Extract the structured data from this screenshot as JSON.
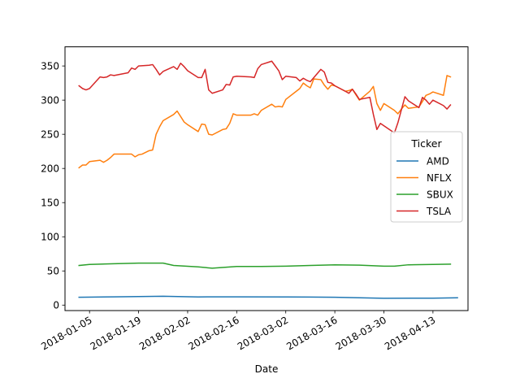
{
  "chart_data": {
    "type": "line",
    "xlabel": "Date",
    "ylabel": "",
    "title": "",
    "x_axis_type": "date",
    "xlim": [
      "2017-12-29",
      "2018-04-23"
    ],
    "ylim": [
      -8,
      378
    ],
    "x_ticks": [
      "2018-01-05",
      "2018-01-19",
      "2018-02-02",
      "2018-02-16",
      "2018-03-02",
      "2018-03-16",
      "2018-03-30",
      "2018-04-13"
    ],
    "y_ticks": [
      0,
      50,
      100,
      150,
      200,
      250,
      300,
      350
    ],
    "grid": false,
    "legend": {
      "title": "Ticker",
      "placement": "center-right",
      "entries": [
        "AMD",
        "NFLX",
        "SBUX",
        "TSLA"
      ]
    },
    "series": [
      {
        "name": "AMD",
        "color": "#1f77b4",
        "points": [
          [
            "2018-01-02",
            11.5
          ],
          [
            "2018-01-12",
            12.1
          ],
          [
            "2018-01-26",
            13.0
          ],
          [
            "2018-02-05",
            12.0
          ],
          [
            "2018-02-16",
            12.1
          ],
          [
            "2018-03-02",
            12.0
          ],
          [
            "2018-03-16",
            11.5
          ],
          [
            "2018-03-30",
            10.0
          ],
          [
            "2018-04-13",
            10.2
          ],
          [
            "2018-04-20",
            10.8
          ]
        ]
      },
      {
        "name": "NFLX",
        "color": "#ff7f0e",
        "points": [
          [
            "2018-01-02",
            201
          ],
          [
            "2018-01-03",
            205
          ],
          [
            "2018-01-04",
            205
          ],
          [
            "2018-01-05",
            210
          ],
          [
            "2018-01-08",
            212
          ],
          [
            "2018-01-09",
            209
          ],
          [
            "2018-01-10",
            212
          ],
          [
            "2018-01-11",
            216
          ],
          [
            "2018-01-12",
            221
          ],
          [
            "2018-01-16",
            221
          ],
          [
            "2018-01-17",
            221
          ],
          [
            "2018-01-18",
            217
          ],
          [
            "2018-01-19",
            220
          ],
          [
            "2018-01-20",
            221
          ],
          [
            "2018-01-22",
            226
          ],
          [
            "2018-01-23",
            227
          ],
          [
            "2018-01-24",
            250
          ],
          [
            "2018-01-25",
            261
          ],
          [
            "2018-01-26",
            270
          ],
          [
            "2018-01-29",
            279
          ],
          [
            "2018-01-30",
            284
          ],
          [
            "2018-01-31",
            276
          ],
          [
            "2018-02-01",
            268
          ],
          [
            "2018-02-02",
            264
          ],
          [
            "2018-02-05",
            254
          ],
          [
            "2018-02-06",
            265
          ],
          [
            "2018-02-07",
            264
          ],
          [
            "2018-02-08",
            250
          ],
          [
            "2018-02-09",
            249
          ],
          [
            "2018-02-12",
            257
          ],
          [
            "2018-02-13",
            258
          ],
          [
            "2018-02-14",
            266
          ],
          [
            "2018-02-15",
            280
          ],
          [
            "2018-02-16",
            278
          ],
          [
            "2018-02-20",
            278
          ],
          [
            "2018-02-21",
            280
          ],
          [
            "2018-02-22",
            278
          ],
          [
            "2018-02-23",
            285
          ],
          [
            "2018-02-26",
            294
          ],
          [
            "2018-02-27",
            290
          ],
          [
            "2018-02-28",
            291
          ],
          [
            "2018-03-01",
            290
          ],
          [
            "2018-03-02",
            301
          ],
          [
            "2018-03-05",
            313
          ],
          [
            "2018-03-06",
            317
          ],
          [
            "2018-03-07",
            325
          ],
          [
            "2018-03-08",
            321
          ],
          [
            "2018-03-09",
            318
          ],
          [
            "2018-03-10",
            331
          ],
          [
            "2018-03-12",
            330
          ],
          [
            "2018-03-13",
            322
          ],
          [
            "2018-03-14",
            316
          ],
          [
            "2018-03-15",
            322
          ],
          [
            "2018-03-16",
            321
          ],
          [
            "2018-03-19",
            313
          ],
          [
            "2018-03-20",
            314
          ],
          [
            "2018-03-21",
            316
          ],
          [
            "2018-03-22",
            308
          ],
          [
            "2018-03-23",
            300
          ],
          [
            "2018-03-26",
            313
          ],
          [
            "2018-03-27",
            320
          ],
          [
            "2018-03-28",
            295
          ],
          [
            "2018-03-29",
            285
          ],
          [
            "2018-03-30",
            295
          ],
          [
            "2018-04-02",
            285
          ],
          [
            "2018-04-03",
            280
          ],
          [
            "2018-04-04",
            287
          ],
          [
            "2018-04-05",
            293
          ],
          [
            "2018-04-06",
            288
          ],
          [
            "2018-04-09",
            290
          ],
          [
            "2018-04-10",
            298
          ],
          [
            "2018-04-11",
            307
          ],
          [
            "2018-04-12",
            309
          ],
          [
            "2018-04-13",
            312
          ],
          [
            "2018-04-16",
            307
          ],
          [
            "2018-04-17",
            336
          ],
          [
            "2018-04-18",
            334
          ]
        ]
      },
      {
        "name": "SBUX",
        "color": "#2ca02c",
        "points": [
          [
            "2018-01-02",
            58
          ],
          [
            "2018-01-05",
            59.5
          ],
          [
            "2018-01-12",
            60.5
          ],
          [
            "2018-01-19",
            61.5
          ],
          [
            "2018-01-26",
            61.5
          ],
          [
            "2018-01-29",
            58
          ],
          [
            "2018-02-05",
            56
          ],
          [
            "2018-02-09",
            54
          ],
          [
            "2018-02-16",
            56.5
          ],
          [
            "2018-02-23",
            56.5
          ],
          [
            "2018-03-02",
            57
          ],
          [
            "2018-03-09",
            58
          ],
          [
            "2018-03-16",
            59
          ],
          [
            "2018-03-23",
            58.5
          ],
          [
            "2018-03-30",
            57
          ],
          [
            "2018-04-02",
            57
          ],
          [
            "2018-04-06",
            59
          ],
          [
            "2018-04-13",
            59.5
          ],
          [
            "2018-04-18",
            60
          ]
        ]
      },
      {
        "name": "TSLA",
        "color": "#d62728",
        "points": [
          [
            "2018-01-02",
            321
          ],
          [
            "2018-01-03",
            317
          ],
          [
            "2018-01-04",
            315
          ],
          [
            "2018-01-05",
            317
          ],
          [
            "2018-01-08",
            334
          ],
          [
            "2018-01-09",
            333
          ],
          [
            "2018-01-10",
            334
          ],
          [
            "2018-01-11",
            337
          ],
          [
            "2018-01-12",
            336
          ],
          [
            "2018-01-16",
            340
          ],
          [
            "2018-01-17",
            347
          ],
          [
            "2018-01-18",
            345
          ],
          [
            "2018-01-19",
            350
          ],
          [
            "2018-01-22",
            351
          ],
          [
            "2018-01-23",
            352
          ],
          [
            "2018-01-24",
            345
          ],
          [
            "2018-01-25",
            337
          ],
          [
            "2018-01-26",
            342
          ],
          [
            "2018-01-29",
            349
          ],
          [
            "2018-01-30",
            345
          ],
          [
            "2018-01-31",
            354
          ],
          [
            "2018-02-01",
            349
          ],
          [
            "2018-02-02",
            343
          ],
          [
            "2018-02-05",
            333
          ],
          [
            "2018-02-06",
            333
          ],
          [
            "2018-02-07",
            345
          ],
          [
            "2018-02-08",
            315
          ],
          [
            "2018-02-09",
            310
          ],
          [
            "2018-02-12",
            315
          ],
          [
            "2018-02-13",
            323
          ],
          [
            "2018-02-14",
            322
          ],
          [
            "2018-02-15",
            334
          ],
          [
            "2018-02-16",
            335
          ],
          [
            "2018-02-20",
            334
          ],
          [
            "2018-02-21",
            333
          ],
          [
            "2018-02-22",
            346
          ],
          [
            "2018-02-23",
            352
          ],
          [
            "2018-02-26",
            357
          ],
          [
            "2018-02-27",
            350
          ],
          [
            "2018-02-28",
            343
          ],
          [
            "2018-03-01",
            330
          ],
          [
            "2018-03-02",
            335
          ],
          [
            "2018-03-05",
            333
          ],
          [
            "2018-03-06",
            328
          ],
          [
            "2018-03-07",
            332
          ],
          [
            "2018-03-08",
            329
          ],
          [
            "2018-03-09",
            327
          ],
          [
            "2018-03-12",
            345
          ],
          [
            "2018-03-13",
            341
          ],
          [
            "2018-03-14",
            326
          ],
          [
            "2018-03-15",
            325
          ],
          [
            "2018-03-16",
            321
          ],
          [
            "2018-03-19",
            313
          ],
          [
            "2018-03-20",
            310
          ],
          [
            "2018-03-21",
            316
          ],
          [
            "2018-03-22",
            309
          ],
          [
            "2018-03-23",
            301
          ],
          [
            "2018-03-26",
            304
          ],
          [
            "2018-03-27",
            279
          ],
          [
            "2018-03-28",
            257
          ],
          [
            "2018-03-29",
            266
          ],
          [
            "2018-04-02",
            252
          ],
          [
            "2018-04-03",
            267
          ],
          [
            "2018-04-04",
            286
          ],
          [
            "2018-04-05",
            305
          ],
          [
            "2018-04-06",
            299
          ],
          [
            "2018-04-09",
            289
          ],
          [
            "2018-04-10",
            304
          ],
          [
            "2018-04-11",
            300
          ],
          [
            "2018-04-12",
            294
          ],
          [
            "2018-04-13",
            300
          ],
          [
            "2018-04-16",
            292
          ],
          [
            "2018-04-17",
            287
          ],
          [
            "2018-04-18",
            293
          ]
        ]
      }
    ]
  }
}
